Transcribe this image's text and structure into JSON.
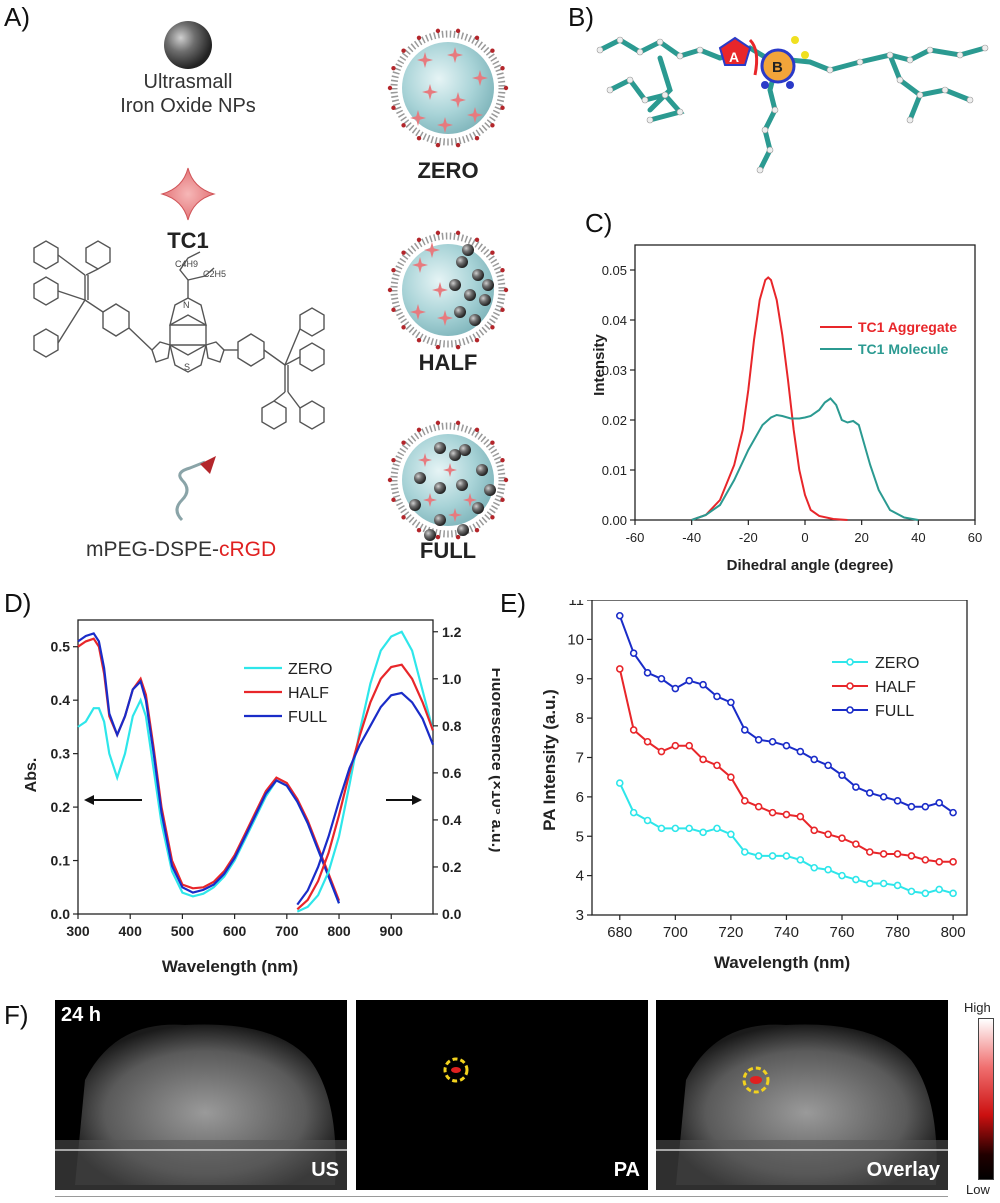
{
  "panel_labels": {
    "a": "A)",
    "b": "B)",
    "c": "C)",
    "d": "D)",
    "e": "E)",
    "f": "F)"
  },
  "panel_a": {
    "np_label_line1": "Ultrasmall",
    "np_label_line2": "Iron Oxide NPs",
    "tc1_label": "TC1",
    "peg_label_prefix": "mPEG-DSPE-",
    "peg_label_suffix": "cRGD",
    "struct_c4h9": "C4H9",
    "struct_c2h5": "C2H5",
    "struct_n": "N",
    "struct_s": "S",
    "particles": [
      "ZERO",
      "HALF",
      "FULL"
    ]
  },
  "panel_b": {
    "ring_a": "A",
    "ring_b": "B"
  },
  "colors": {
    "red": "#e8262a",
    "cyan": "#2ee6ea",
    "blue": "#1a2cc8",
    "teal": "#2b9a91",
    "accent_red": "#e02020"
  },
  "chart_data": [
    {
      "id": "C",
      "type": "line",
      "xlabel": "Dihedral angle (degree)",
      "ylabel": "Intensity",
      "xlim": [
        -60,
        60
      ],
      "ylim": [
        0,
        0.055
      ],
      "xticks": [
        "-60",
        "-40",
        "-20",
        "0",
        "20",
        "40",
        "60"
      ],
      "yticks": [
        "0.00",
        "0.01",
        "0.02",
        "0.03",
        "0.04",
        "0.05"
      ],
      "legend": "top-right",
      "series": [
        {
          "name": "TC1 Aggregate",
          "color": "#e8262a",
          "x": [
            -40,
            -35,
            -30,
            -25,
            -22,
            -20,
            -18,
            -16,
            -14,
            -13,
            -12,
            -10,
            -8,
            -6,
            -4,
            -2,
            0,
            2,
            5,
            10,
            15
          ],
          "y": [
            0,
            0.001,
            0.004,
            0.011,
            0.018,
            0.026,
            0.036,
            0.044,
            0.048,
            0.0485,
            0.048,
            0.044,
            0.037,
            0.028,
            0.018,
            0.01,
            0.005,
            0.002,
            0.0008,
            0.0002,
            0
          ]
        },
        {
          "name": "TC1 Molecule",
          "color": "#2b9a91",
          "x": [
            -40,
            -35,
            -30,
            -25,
            -20,
            -15,
            -12,
            -10,
            -8,
            -5,
            -2,
            0,
            2,
            5,
            7,
            9,
            11,
            13,
            15,
            17,
            19,
            21,
            23,
            26,
            30,
            35,
            40
          ],
          "y": [
            0,
            0.001,
            0.003,
            0.008,
            0.014,
            0.019,
            0.0205,
            0.021,
            0.0208,
            0.0203,
            0.0203,
            0.0205,
            0.0208,
            0.022,
            0.0235,
            0.0243,
            0.023,
            0.02,
            0.0195,
            0.0198,
            0.019,
            0.015,
            0.011,
            0.006,
            0.002,
            0.0005,
            0
          ]
        }
      ]
    },
    {
      "id": "D",
      "type": "line",
      "xlabel": "Wavelength (nm)",
      "ylabel": "Abs.",
      "y2label": "Fluorescence (×10⁵ a.u.)",
      "xlim": [
        300,
        980
      ],
      "ylim": [
        0,
        0.55
      ],
      "y2lim": [
        0,
        1.25
      ],
      "xticks": [
        "300",
        "400",
        "500",
        "600",
        "700",
        "800",
        "900"
      ],
      "yticks": [
        "0.0",
        "0.1",
        "0.2",
        "0.3",
        "0.4",
        "0.5"
      ],
      "y2ticks": [
        "0.0",
        "0.2",
        "0.4",
        "0.6",
        "0.8",
        "1.0",
        "1.2"
      ],
      "legend": "center",
      "series": [
        {
          "name": "ZERO",
          "color": "#2ee6ea",
          "axis": "abs",
          "x": [
            300,
            315,
            330,
            340,
            350,
            360,
            375,
            390,
            405,
            420,
            430,
            445,
            460,
            480,
            500,
            520,
            540,
            560,
            580,
            600,
            620,
            640,
            660,
            680,
            700,
            720,
            740,
            760,
            780,
            800
          ],
          "y": [
            0.35,
            0.36,
            0.385,
            0.385,
            0.36,
            0.3,
            0.255,
            0.3,
            0.37,
            0.4,
            0.37,
            0.27,
            0.17,
            0.08,
            0.04,
            0.033,
            0.038,
            0.05,
            0.07,
            0.1,
            0.14,
            0.18,
            0.22,
            0.25,
            0.24,
            0.21,
            0.17,
            0.12,
            0.07,
            0.02
          ]
        },
        {
          "name": "HALF",
          "color": "#e8262a",
          "axis": "abs",
          "x": [
            300,
            315,
            330,
            340,
            350,
            360,
            375,
            390,
            405,
            420,
            430,
            445,
            460,
            480,
            500,
            520,
            540,
            560,
            580,
            600,
            620,
            640,
            660,
            680,
            700,
            720,
            740,
            760,
            780,
            800
          ],
          "y": [
            0.5,
            0.51,
            0.515,
            0.5,
            0.45,
            0.37,
            0.335,
            0.37,
            0.42,
            0.44,
            0.41,
            0.31,
            0.2,
            0.1,
            0.055,
            0.048,
            0.05,
            0.06,
            0.08,
            0.11,
            0.15,
            0.19,
            0.23,
            0.255,
            0.245,
            0.215,
            0.175,
            0.125,
            0.075,
            0.025
          ]
        },
        {
          "name": "FULL",
          "color": "#1a2cc8",
          "axis": "abs",
          "x": [
            300,
            315,
            330,
            340,
            350,
            360,
            375,
            390,
            405,
            420,
            430,
            445,
            460,
            480,
            500,
            520,
            540,
            560,
            580,
            600,
            620,
            640,
            660,
            680,
            700,
            720,
            740,
            760,
            780,
            800
          ],
          "y": [
            0.51,
            0.52,
            0.525,
            0.51,
            0.46,
            0.375,
            0.335,
            0.37,
            0.42,
            0.435,
            0.4,
            0.3,
            0.19,
            0.09,
            0.05,
            0.04,
            0.045,
            0.055,
            0.075,
            0.105,
            0.145,
            0.185,
            0.225,
            0.25,
            0.24,
            0.21,
            0.17,
            0.12,
            0.07,
            0.02
          ]
        },
        {
          "name": "ZERO",
          "color": "#2ee6ea",
          "axis": "fl",
          "x": [
            720,
            740,
            760,
            780,
            800,
            820,
            840,
            860,
            880,
            900,
            920,
            940,
            960,
            980
          ],
          "y": [
            0.01,
            0.03,
            0.08,
            0.18,
            0.33,
            0.55,
            0.78,
            0.98,
            1.12,
            1.18,
            1.2,
            1.12,
            0.95,
            0.78
          ]
        },
        {
          "name": "HALF",
          "color": "#e8262a",
          "axis": "fl",
          "x": [
            720,
            740,
            760,
            780,
            800,
            820,
            840,
            860,
            880,
            900,
            920,
            940,
            960,
            980
          ],
          "y": [
            0.02,
            0.06,
            0.14,
            0.26,
            0.42,
            0.6,
            0.76,
            0.9,
            1.0,
            1.05,
            1.06,
            1.0,
            0.9,
            0.78
          ]
        },
        {
          "name": "FULL",
          "color": "#1a2cc8",
          "axis": "fl",
          "x": [
            720,
            740,
            760,
            780,
            800,
            820,
            840,
            860,
            880,
            900,
            920,
            940,
            960,
            980
          ],
          "y": [
            0.04,
            0.1,
            0.2,
            0.33,
            0.48,
            0.62,
            0.72,
            0.8,
            0.88,
            0.93,
            0.94,
            0.9,
            0.83,
            0.72
          ]
        }
      ]
    },
    {
      "id": "E",
      "type": "line",
      "xlabel": "Wavelength (nm)",
      "ylabel": "PA Intensity (a.u.)",
      "xlim": [
        670,
        805
      ],
      "ylim": [
        3,
        11
      ],
      "xticks": [
        "680",
        "700",
        "720",
        "740",
        "760",
        "780",
        "800"
      ],
      "yticks": [
        "3",
        "4",
        "5",
        "6",
        "7",
        "8",
        "9",
        "10",
        "11"
      ],
      "legend": "top-right",
      "series": [
        {
          "name": "ZERO",
          "color": "#2ee6ea",
          "x": [
            680,
            685,
            690,
            695,
            700,
            705,
            710,
            715,
            720,
            725,
            730,
            735,
            740,
            745,
            750,
            755,
            760,
            765,
            770,
            775,
            780,
            785,
            790,
            795,
            800
          ],
          "y": [
            6.35,
            5.6,
            5.4,
            5.2,
            5.2,
            5.2,
            5.1,
            5.2,
            5.05,
            4.6,
            4.5,
            4.5,
            4.5,
            4.4,
            4.2,
            4.15,
            4.0,
            3.9,
            3.8,
            3.8,
            3.75,
            3.6,
            3.55,
            3.65,
            3.55
          ]
        },
        {
          "name": "HALF",
          "color": "#e8262a",
          "x": [
            680,
            685,
            690,
            695,
            700,
            705,
            710,
            715,
            720,
            725,
            730,
            735,
            740,
            745,
            750,
            755,
            760,
            765,
            770,
            775,
            780,
            785,
            790,
            795,
            800
          ],
          "y": [
            9.25,
            7.7,
            7.4,
            7.15,
            7.3,
            7.3,
            6.95,
            6.8,
            6.5,
            5.9,
            5.75,
            5.6,
            5.55,
            5.5,
            5.15,
            5.05,
            4.95,
            4.8,
            4.6,
            4.55,
            4.55,
            4.5,
            4.4,
            4.35,
            4.35
          ]
        },
        {
          "name": "FULL",
          "color": "#1a2cc8",
          "x": [
            680,
            685,
            690,
            695,
            700,
            705,
            710,
            715,
            720,
            725,
            730,
            735,
            740,
            745,
            750,
            755,
            760,
            765,
            770,
            775,
            780,
            785,
            790,
            795,
            800
          ],
          "y": [
            10.6,
            9.65,
            9.15,
            9.0,
            8.75,
            8.95,
            8.85,
            8.55,
            8.4,
            7.7,
            7.45,
            7.4,
            7.3,
            7.15,
            6.95,
            6.8,
            6.55,
            6.25,
            6.1,
            6.0,
            5.9,
            5.75,
            5.75,
            5.85,
            5.6
          ]
        }
      ]
    }
  ],
  "panel_f": {
    "time": "24 h",
    "images": [
      "US",
      "PA",
      "Overlay"
    ],
    "scale_high": "High",
    "scale_low": "Low"
  }
}
